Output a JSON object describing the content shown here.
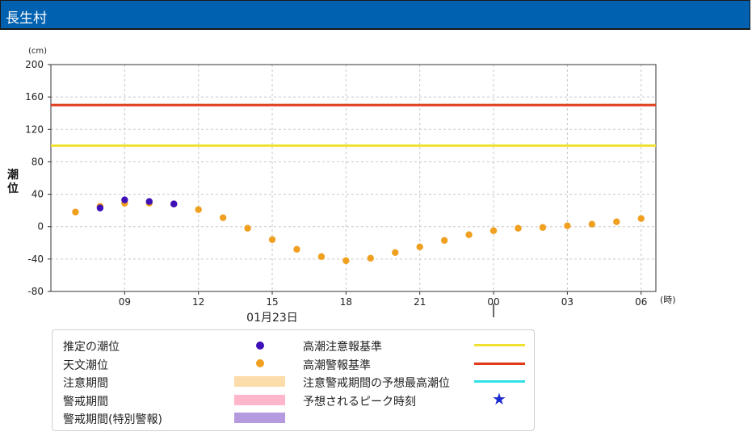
{
  "header": {
    "title": "長生村"
  },
  "chart_data": {
    "type": "scatter",
    "ylabel": "潮位",
    "y_unit": "(cm)",
    "x_unit": "(時)",
    "date_label": "01月23日",
    "ylim": [
      -80,
      200
    ],
    "yticks": [
      -80,
      -40,
      0,
      40,
      80,
      120,
      160,
      200
    ],
    "x_hours_range": [
      6,
      30.6
    ],
    "xticks": [
      {
        "h": 9,
        "label": "09"
      },
      {
        "h": 12,
        "label": "12"
      },
      {
        "h": 15,
        "label": "15"
      },
      {
        "h": 18,
        "label": "18"
      },
      {
        "h": 21,
        "label": "21"
      },
      {
        "h": 24,
        "label": "00"
      },
      {
        "h": 27,
        "label": "03"
      },
      {
        "h": 30,
        "label": "06"
      }
    ],
    "day_boundary_h": 24,
    "grid": true,
    "series": [
      {
        "name": "天文潮位",
        "color": "#f0a020",
        "points": [
          {
            "h": 7,
            "v": 18
          },
          {
            "h": 8,
            "v": 25
          },
          {
            "h": 9,
            "v": 29
          },
          {
            "h": 10,
            "v": 29
          },
          {
            "h": 11,
            "v": 28
          },
          {
            "h": 12,
            "v": 21
          },
          {
            "h": 13,
            "v": 11
          },
          {
            "h": 14,
            "v": -2
          },
          {
            "h": 15,
            "v": -16
          },
          {
            "h": 16,
            "v": -28
          },
          {
            "h": 17,
            "v": -37
          },
          {
            "h": 18,
            "v": -42
          },
          {
            "h": 19,
            "v": -39
          },
          {
            "h": 20,
            "v": -32
          },
          {
            "h": 21,
            "v": -25
          },
          {
            "h": 22,
            "v": -17
          },
          {
            "h": 23,
            "v": -10
          },
          {
            "h": 24,
            "v": -5
          },
          {
            "h": 25,
            "v": -2
          },
          {
            "h": 26,
            "v": -1
          },
          {
            "h": 27,
            "v": 1
          },
          {
            "h": 28,
            "v": 3
          },
          {
            "h": 29,
            "v": 6
          },
          {
            "h": 30,
            "v": 10
          }
        ]
      },
      {
        "name": "推定の潮位",
        "color": "#3d10b8",
        "points": [
          {
            "h": 8,
            "v": 23
          },
          {
            "h": 9,
            "v": 33
          },
          {
            "h": 10,
            "v": 31
          },
          {
            "h": 11,
            "v": 28
          }
        ]
      }
    ],
    "reference_lines": [
      {
        "name": "高潮注意報基準",
        "value": 100,
        "color": "#f0e030"
      },
      {
        "name": "高潮警報基準",
        "value": 150,
        "color": "#e03c1c"
      }
    ]
  },
  "legend": {
    "estimated": "推定の潮位",
    "astronomical": "天文潮位",
    "caution_period": "注意期間",
    "warning_period": "警戒期間",
    "special_warning_period": "警戒期間(特別警報)",
    "advisory_std": "高潮注意報基準",
    "warning_std": "高潮警報基準",
    "forecast_peak_level": "注意警戒期間の予想最高潮位",
    "peak_time": "予想されるピーク時刻",
    "colors": {
      "estimated": "#3d10b8",
      "astronomical": "#f0a020",
      "caution_period": "#fbdcaa",
      "warning_period": "#ffb6cb",
      "special_warning_period": "#b69ae0",
      "advisory_std": "#f0e030",
      "warning_std": "#e03c1c",
      "forecast_peak_level": "#30e0e8",
      "peak_time": "#1a2ad0"
    }
  }
}
